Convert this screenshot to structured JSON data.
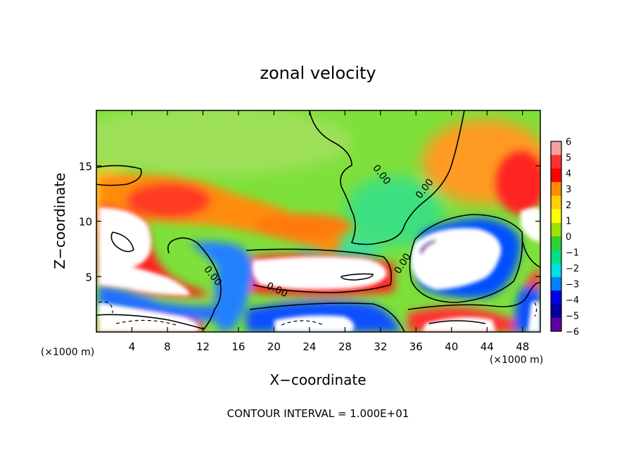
{
  "chart_data": {
    "type": "heatmap",
    "title": "zonal velocity",
    "xlabel": "X−coordinate",
    "ylabel": "Z−coordinate",
    "x_unit_left": "(×1000 m)",
    "x_unit_right": "(×1000 m)",
    "xlim": [
      0,
      50
    ],
    "ylim": [
      0,
      20
    ],
    "x_ticks": [
      4,
      8,
      12,
      16,
      20,
      24,
      28,
      32,
      36,
      40,
      44,
      48
    ],
    "y_ticks": [
      5,
      10,
      15
    ],
    "colorbar": {
      "ticks": [
        6,
        5,
        4,
        3,
        2,
        1,
        0,
        -1,
        -2,
        -3,
        -4,
        -5,
        -6
      ],
      "tick_labels": [
        "6",
        "5",
        "4",
        "3",
        "2",
        "1",
        "0",
        "−1",
        "−2",
        "−3",
        "−4",
        "−5",
        "−6"
      ],
      "range": [
        -6,
        6
      ],
      "colors": [
        "#f5a0a0",
        "#ff3030",
        "#ff0000",
        "#ff8c00",
        "#ffd000",
        "#ffff00",
        "#a0e000",
        "#30d030",
        "#00e080",
        "#00e0e0",
        "#0080ff",
        "#0000e0",
        "#0000a0",
        "#6000a0"
      ]
    },
    "contour_labels": [
      "0.00",
      "0.00",
      "0.00",
      "0.00",
      "0.00",
      "0.00"
    ],
    "footer": "CONTOUR INTERVAL = 1.000E+01",
    "grid": false
  }
}
